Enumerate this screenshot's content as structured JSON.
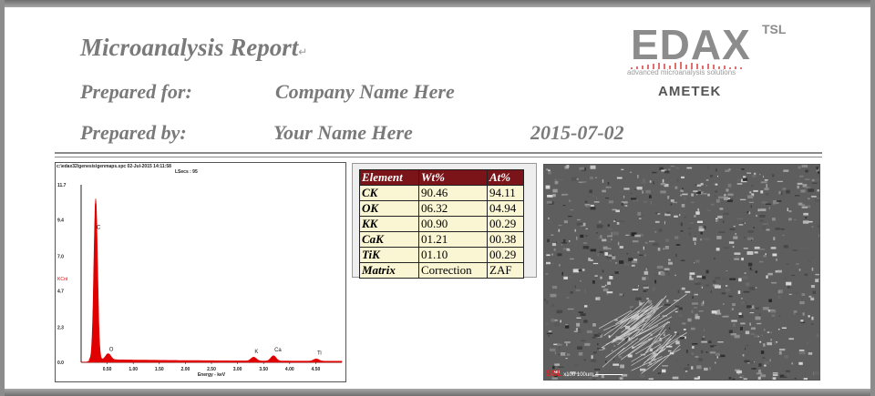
{
  "report": {
    "title": "Microanalysis Report",
    "prepared_for_label": "Prepared for:",
    "prepared_for_value": "Company Name Here",
    "prepared_by_label": "Prepared by:",
    "prepared_by_value": "Your Name Here",
    "date": "2015-07-02",
    "edit_mark": "↵"
  },
  "logo": {
    "brand": "EDAX",
    "suffix": "TSL",
    "tagline": "advanced microanalysis solutions",
    "parent": "AMETEK"
  },
  "spectrum": {
    "header_line1": "c:\\edax32\\genesis\\genmaps.spc  02-Jul-2015 14:11:58",
    "header_line2": "LSecs : 95",
    "ylabel": "KCnt",
    "xlabel": "Energy - keV",
    "series_color": "#e00000"
  },
  "chart_data": {
    "type": "line",
    "title": "",
    "xlabel": "Energy - keV",
    "ylabel": "KCnt",
    "xlim": [
      0,
      5
    ],
    "ylim": [
      0,
      11.7
    ],
    "x_ticks": [
      "0.50",
      "1.00",
      "1.50",
      "2.00",
      "2.50",
      "3.00",
      "3.50",
      "4.00",
      "4.50"
    ],
    "y_ticks": [
      "0.0",
      "2.3",
      "4.7",
      "7.0",
      "9.4",
      "11.7"
    ],
    "peaks": [
      {
        "label": "C",
        "x": 0.28,
        "y": 10.6
      },
      {
        "label": "O",
        "x": 0.52,
        "y": 0.4
      },
      {
        "label": "K",
        "x": 3.31,
        "y": 0.25
      },
      {
        "label": "Ca",
        "x": 3.69,
        "y": 0.35
      },
      {
        "label": "Ti",
        "x": 4.51,
        "y": 0.15
      }
    ]
  },
  "table": {
    "headers": [
      "Element",
      "Wt%",
      "At%"
    ],
    "rows": [
      [
        "CK",
        "90.46",
        "94.11"
      ],
      [
        "OK",
        "06.32",
        "04.94"
      ],
      [
        "KK",
        "00.90",
        "00.29"
      ],
      [
        "CaK",
        "01.21",
        "00.38"
      ],
      [
        "TiK",
        "01.10",
        "00.29"
      ],
      [
        "Matrix",
        "Correction",
        "ZAF"
      ]
    ]
  },
  "sem": {
    "logo": "SSL",
    "magnification": "x100",
    "scale": "100um"
  }
}
